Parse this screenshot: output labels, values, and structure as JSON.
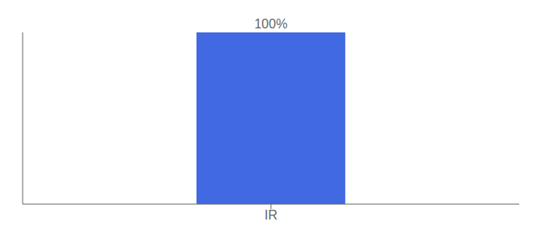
{
  "chart_data": {
    "type": "bar",
    "categories": [
      "IR"
    ],
    "values": [
      100
    ],
    "value_labels": [
      "100%"
    ],
    "data_labels": true,
    "color": "#4169e1",
    "ylim": [
      0,
      100
    ],
    "grid": false,
    "tick_labels": "x"
  }
}
